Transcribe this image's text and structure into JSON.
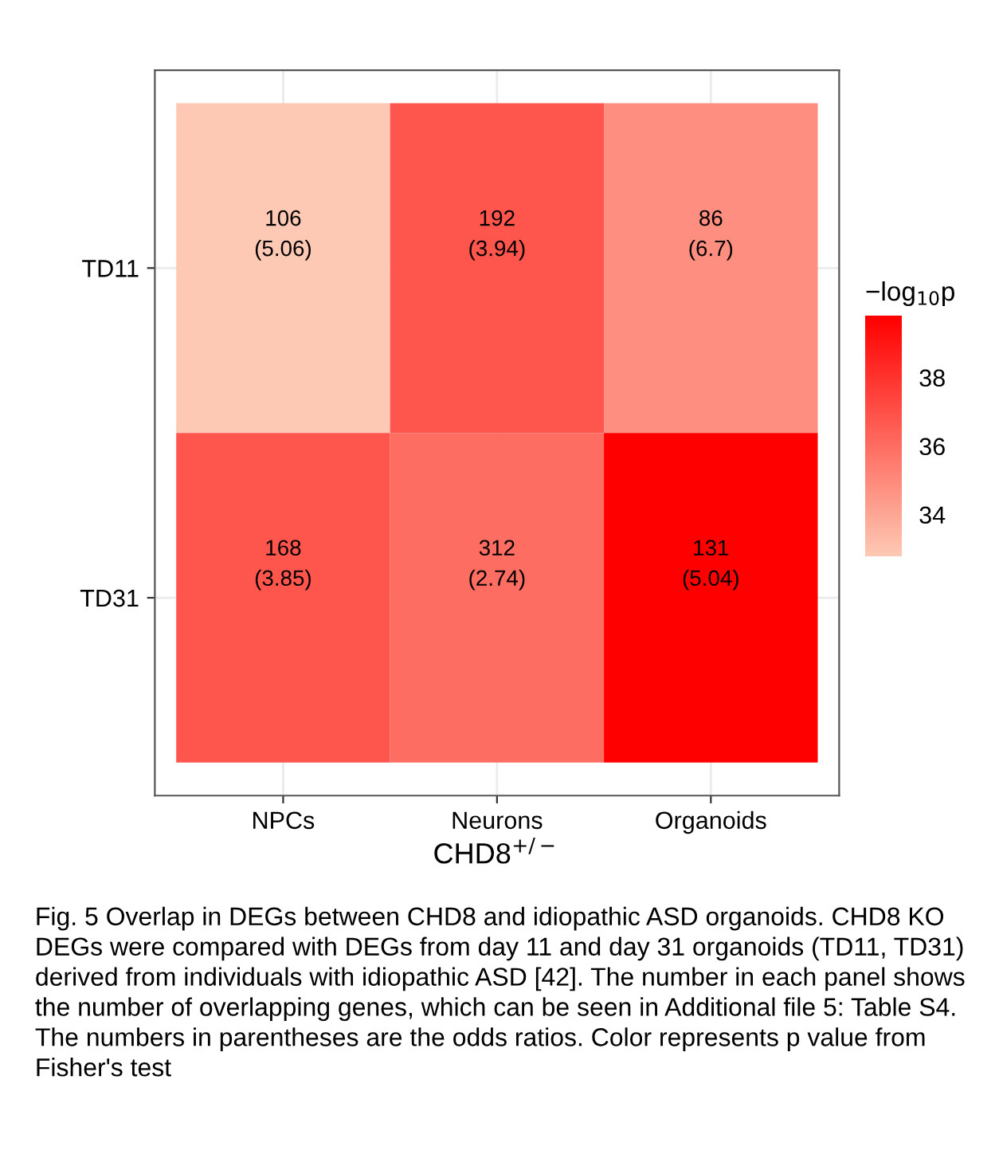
{
  "chart_data": {
    "type": "heatmap",
    "categories": [
      "NPCs",
      "Neurons",
      "Organoids"
    ],
    "y_categories": [
      "TD11",
      "TD31"
    ],
    "cells": [
      [
        32.8,
        36.8,
        34.8
      ],
      [
        36.8,
        36.0,
        39.8
      ]
    ],
    "cell_labels": [
      [
        "106\n(5.06)",
        "192\n(3.94)",
        "86\n(6.7)"
      ],
      [
        "168\n(3.85)",
        "312\n(2.74)",
        "131\n(5.04)"
      ]
    ],
    "colors": [
      "#fdc9b4",
      "#ff0000"
    ],
    "clim": [
      32.8,
      39.8
    ],
    "cticks": [
      34,
      36,
      38
    ],
    "xlabel": "CHD8$^{+/−}$",
    "clabel": "−log$_{10}$p",
    "grid": true,
    "annotations": [
      "Fig. 5 Overlap in DEGs between CHD8 and idiopathic ASD organoids. CHD8 KO DEGs were compared with DEGs from day 11 and day 31 organoids (TD11, TD31) derived from individuals with idiopathic ASD [42]. The number in each panel shows the number of overlapping genes, which can be seen in Additional file 5: Table S4. The numbers in parentheses are the odds ratios. Color represents p value from Fisher's test"
    ]
  }
}
